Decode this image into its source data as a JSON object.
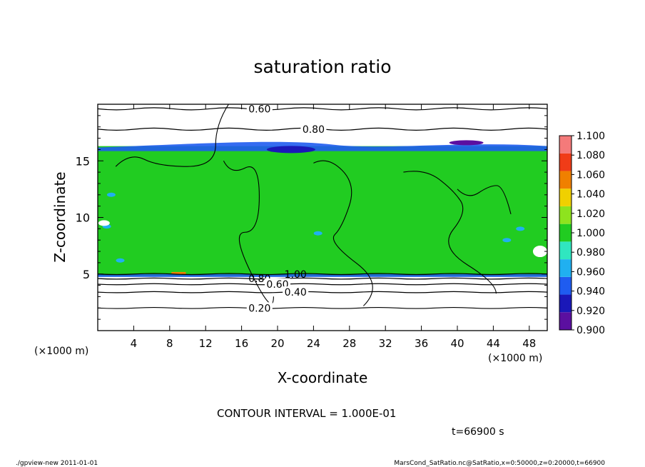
{
  "chart_data": {
    "type": "heatmap",
    "title": "saturation ratio",
    "xlabel": "X-coordinate",
    "ylabel": "Z-coordinate",
    "x_unit": "(×1000 m)",
    "y_unit": "(×1000 m)",
    "xlim": [
      0,
      50
    ],
    "ylim": [
      0,
      20
    ],
    "x_ticks": [
      4,
      8,
      12,
      16,
      20,
      24,
      28,
      32,
      36,
      40,
      44,
      48
    ],
    "y_ticks": [
      5,
      10,
      15
    ],
    "colorbar": {
      "levels": [
        "0.900",
        "0.920",
        "0.940",
        "0.960",
        "0.980",
        "1.000",
        "1.020",
        "1.040",
        "1.060",
        "1.080",
        "1.100"
      ],
      "colors": [
        "#5b0fa0",
        "#1a18b8",
        "#1f5cf0",
        "#20b0f0",
        "#30e6c0",
        "#21cc21",
        "#8ee31e",
        "#f0d000",
        "#f08000",
        "#f03c18",
        "#f47a7a"
      ]
    },
    "field": {
      "saturated_layer_km": [
        4.8,
        16.3
      ],
      "background_color": "#21cc21",
      "top_edge_color": "#1f5cf0"
    },
    "contours": [
      {
        "label": "0.60",
        "z_km": 19.6
      },
      {
        "label": "0.80",
        "z_km": 17.8
      },
      {
        "label": "1.00",
        "z_km": 5.0
      },
      {
        "label": "0.80",
        "z_km": 4.6
      },
      {
        "label": "0.60",
        "z_km": 4.1
      },
      {
        "label": "0.40",
        "z_km": 3.4
      },
      {
        "label": "0.20",
        "z_km": 2.0
      }
    ],
    "contour_interval_text": "CONTOUR INTERVAL = 1.000E-01",
    "time_text": "t=66900 s"
  },
  "footer": {
    "left": "./gpview-new   2011-01-01",
    "right": "MarsCond_SatRatio.nc@SatRatio,x=0:50000,z=0:20000,t=66900"
  }
}
